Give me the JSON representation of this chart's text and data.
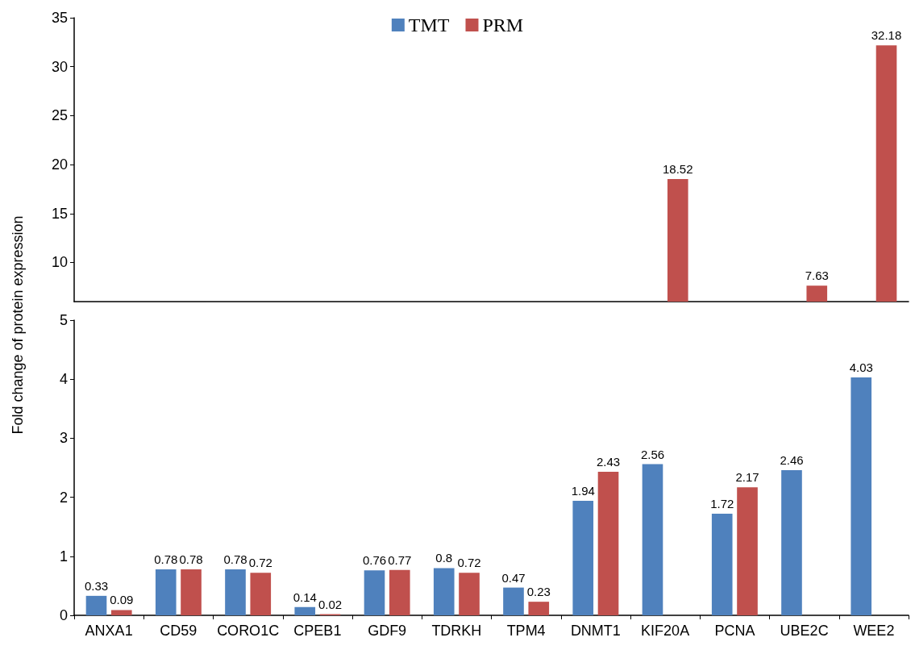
{
  "chart_data": [
    {
      "type": "bar",
      "categories": [
        null,
        null,
        null,
        null,
        null,
        null,
        null,
        null,
        null,
        null,
        null,
        null
      ],
      "series": [
        {
          "name": "TMT",
          "color": "#4f81bd",
          "values": [
            null,
            null,
            null,
            null,
            null,
            null,
            null,
            null,
            null,
            null,
            null,
            null
          ],
          "value_labels": [
            null,
            null,
            null,
            null,
            null,
            null,
            null,
            null,
            null,
            null,
            null,
            null
          ]
        },
        {
          "name": "PRM",
          "color": "#c0504d",
          "values": [
            null,
            null,
            null,
            null,
            null,
            null,
            null,
            null,
            18.52,
            null,
            7.63,
            32.18
          ],
          "value_labels": [
            null,
            null,
            null,
            null,
            null,
            null,
            null,
            null,
            "18.52",
            null,
            "7.63",
            "32.18"
          ]
        }
      ],
      "ylim": [
        6,
        35
      ],
      "yticks": [
        10,
        15,
        20,
        25,
        30,
        35
      ],
      "tick_labels": "y",
      "legend": "top",
      "grid": false
    },
    {
      "type": "bar",
      "categories": [
        "ANXA1",
        "CD59",
        "CORO1C",
        "CPEB1",
        "GDF9",
        "TDRKH",
        "TPM4",
        "DNMT1",
        "KIF20A",
        "PCNA",
        "UBE2C",
        "WEE2"
      ],
      "ylabel": "Fold change of protein expression",
      "series": [
        {
          "color": "#4f81bd",
          "values": [
            0.33,
            0.78,
            0.78,
            0.14,
            0.76,
            0.8,
            0.47,
            1.94,
            2.56,
            1.72,
            2.46,
            4.03
          ],
          "value_labels": [
            "0.33",
            "0.78",
            "0.78",
            "0.14",
            "0.76",
            "0.8",
            "0.47",
            "1.94",
            "2.56",
            "1.72",
            "2.46",
            "4.03"
          ]
        },
        {
          "color": "#c0504d",
          "values": [
            0.09,
            0.78,
            0.72,
            0.02,
            0.77,
            0.72,
            0.23,
            2.43,
            null,
            2.17,
            null,
            null
          ],
          "value_labels": [
            "0.09",
            "0.78",
            "0.72",
            "0.02",
            "0.77",
            "0.72",
            "0.23",
            "2.43",
            null,
            "2.17",
            null,
            null
          ]
        }
      ],
      "ylim": [
        0,
        5
      ],
      "yticks": [
        0,
        1,
        2,
        3,
        4,
        5
      ],
      "grid": false
    }
  ]
}
